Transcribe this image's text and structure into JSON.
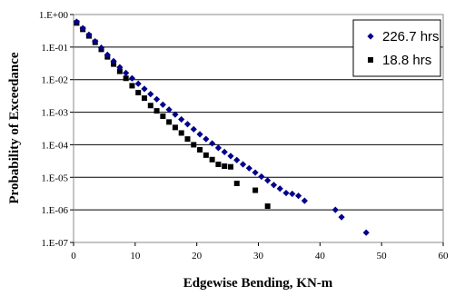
{
  "chart_data": {
    "type": "scatter",
    "title": "",
    "xlabel": "Edgewise Bending, KN-m",
    "ylabel": "Probability of Exceedance",
    "xlim": [
      0,
      60
    ],
    "xticks": [
      0,
      10,
      20,
      30,
      40,
      50,
      60
    ],
    "ylim": [
      1e-07,
      1
    ],
    "yscale": "log",
    "yticks": [
      1,
      0.1,
      0.01,
      0.001,
      0.0001,
      1e-05,
      1e-06,
      1e-07
    ],
    "yticklabels": [
      "1.E+00",
      "1.E-01",
      "1.E-02",
      "1.E-03",
      "1.E-04",
      "1.E-05",
      "1.E-06",
      "1.E-07"
    ],
    "grid": "horizontal",
    "legend_position": "top-right",
    "series": [
      {
        "name": "226.7 hrs",
        "marker": "diamond",
        "color": "#00008b",
        "x": [
          0.5,
          1.5,
          2.5,
          3.5,
          4.5,
          5.5,
          6.5,
          7.5,
          8.5,
          9.5,
          10.5,
          11.5,
          12.5,
          13.5,
          14.5,
          15.5,
          16.5,
          17.5,
          18.5,
          19.5,
          20.5,
          21.5,
          22.5,
          23.5,
          24.5,
          25.5,
          26.5,
          27.5,
          28.5,
          29.5,
          30.5,
          31.5,
          32.5,
          33.5,
          34.5,
          35.5,
          36.5,
          37.5,
          42.5,
          43.5,
          47.5
        ],
        "y": [
          0.6,
          0.38,
          0.24,
          0.15,
          0.095,
          0.058,
          0.037,
          0.024,
          0.016,
          0.011,
          0.0075,
          0.0052,
          0.0036,
          0.0025,
          0.0017,
          0.0012,
          0.00085,
          0.0006,
          0.00043,
          0.0003,
          0.00021,
          0.00015,
          0.00011,
          8e-05,
          6e-05,
          4.5e-05,
          3.4e-05,
          2.5e-05,
          1.9e-05,
          1.4e-05,
          1.05e-05,
          8e-06,
          5.8e-06,
          4.5e-06,
          3.3e-06,
          3.1e-06,
          2.7e-06,
          1.9e-06,
          1e-06,
          6e-07,
          2e-07
        ]
      },
      {
        "name": "18.8 hrs",
        "marker": "square",
        "color": "#000000",
        "x": [
          0.5,
          1.5,
          2.5,
          3.5,
          4.5,
          5.5,
          6.5,
          7.5,
          8.5,
          9.5,
          10.5,
          11.5,
          12.5,
          13.5,
          14.5,
          15.5,
          16.5,
          17.5,
          18.5,
          19.5,
          20.5,
          21.5,
          22.5,
          23.5,
          24.5,
          25.5,
          26.5,
          29.5,
          31.5
        ],
        "y": [
          0.55,
          0.35,
          0.22,
          0.14,
          0.085,
          0.05,
          0.03,
          0.018,
          0.011,
          0.0065,
          0.004,
          0.0027,
          0.0016,
          0.0011,
          0.00075,
          0.0005,
          0.00034,
          0.00023,
          0.00015,
          0.0001,
          7e-05,
          4.8e-05,
          3.5e-05,
          2.5e-05,
          2.2e-05,
          2.1e-05,
          6.5e-06,
          4e-06,
          1.3e-06
        ]
      }
    ]
  }
}
